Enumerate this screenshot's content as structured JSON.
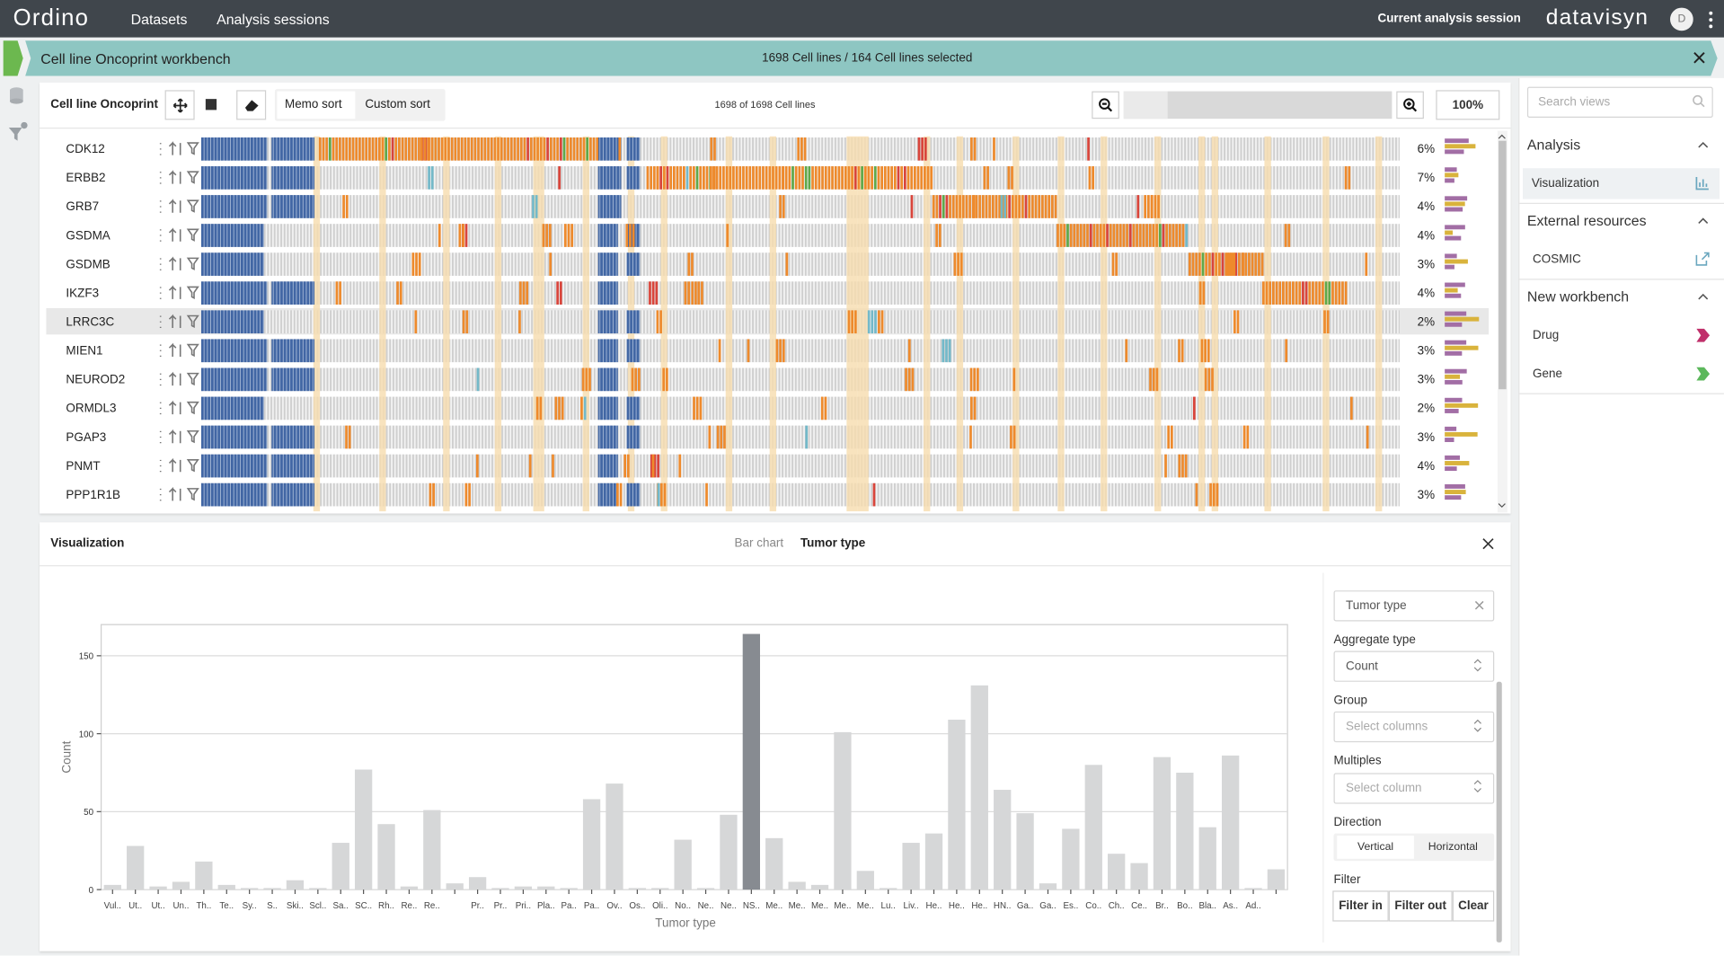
{
  "nav": {
    "brand": "Ordino",
    "links": [
      "Datasets",
      "Analysis sessions"
    ],
    "session": "Current analysis session",
    "company": "datavisyn",
    "avatar": "D"
  },
  "workbench": {
    "title": "Cell line Oncoprint workbench",
    "summary": "1698 Cell lines / 164 Cell lines selected"
  },
  "oncoprint": {
    "title": "Cell line Oncoprint",
    "sort_buttons": [
      "Memo sort",
      "Custom sort"
    ],
    "count": "1698 of 1698 Cell lines",
    "zoom": "100%",
    "genes": [
      "CDK12",
      "ERBB2",
      "GRB7",
      "GSDMA",
      "GSDMB",
      "IKZF3",
      "LRRC3C",
      "MIEN1",
      "NEUROD2",
      "ORMDL3",
      "PGAP3",
      "PNMT",
      "PPP1R1B"
    ],
    "frequencies": [
      "6%",
      "7%",
      "4%",
      "4%",
      "3%",
      "4%",
      "2%",
      "3%",
      "3%",
      "2%",
      "3%",
      "4%",
      "3%"
    ]
  },
  "sidebar": {
    "search": "Search views",
    "sections": [
      {
        "title": "Analysis",
        "items": [
          "Visualization"
        ]
      },
      {
        "title": "External resources",
        "items": [
          "COSMIC"
        ]
      },
      {
        "title": "New workbench",
        "items": [
          "Drug",
          "Gene"
        ]
      }
    ]
  },
  "visualization": {
    "title": "Visualization",
    "tabs": [
      "Bar chart",
      "Tumor type"
    ],
    "column": "Tumor type",
    "aggregate_label": "Aggregate type",
    "aggregate": "Count",
    "group_label": "Group",
    "group": "Select columns",
    "multiples_label": "Multiples",
    "multiples": "Select column",
    "direction_label": "Direction",
    "directions": [
      "Vertical",
      "Horizontal"
    ],
    "filter_label": "Filter",
    "filters": [
      "Filter in",
      "Filter out",
      "Clear"
    ]
  },
  "chart_data": {
    "type": "bar",
    "xlabel": "Tumor type",
    "ylabel": "Count",
    "categories": [
      "Vul..",
      "Ut..",
      "Ut..",
      "Un..",
      "Th..",
      "Te..",
      "Sy..",
      "S..",
      "Ski..",
      "Scl..",
      "Sa..",
      "SC..",
      "Rh..",
      "Re..",
      "Re..",
      null,
      "Pr..",
      "Pr..",
      "Pri..",
      "Pla..",
      "Pa..",
      "Pa..",
      "Ov..",
      "Os..",
      "Oli..",
      "No..",
      "Ne..",
      "Ne..",
      "NS..",
      "Me..",
      "Me..",
      "Me..",
      "Me..",
      "Me..",
      "Lu..",
      "Liv..",
      "He..",
      "He..",
      "He..",
      "HN..",
      "Ga..",
      "Ga..",
      "Es..",
      "Co..",
      "Ch..",
      "Ce..",
      "Br..",
      "Bo..",
      "Bla..",
      "As..",
      "Ad..",
      null
    ],
    "values": [
      3,
      28,
      2,
      5,
      18,
      3,
      1,
      1,
      6,
      1,
      30,
      77,
      42,
      2,
      51,
      4,
      8,
      1,
      2,
      2,
      1,
      58,
      68,
      1,
      1,
      32,
      1,
      48,
      164,
      33,
      5,
      3,
      101,
      12,
      1,
      30,
      36,
      109,
      131,
      64,
      49,
      4,
      39,
      80,
      23,
      17,
      85,
      75,
      40,
      86,
      1,
      13
    ],
    "colors": [
      "#d6d7d8",
      "#d6d7d8",
      "#d6d7d8",
      "#d6d7d8",
      "#d6d7d8",
      "#d6d7d8",
      "#d6d7d8",
      "#d6d7d8",
      "#d6d7d8",
      "#d6d7d8",
      "#d6d7d8",
      "#d6d7d8",
      "#d6d7d8",
      "#d6d7d8",
      "#d6d7d8",
      "#d6d7d8",
      "#d6d7d8",
      "#d6d7d8",
      "#d6d7d8",
      "#d6d7d8",
      "#d6d7d8",
      "#d6d7d8",
      "#d6d7d8",
      "#d6d7d8",
      "#d6d7d8",
      "#d6d7d8",
      "#d6d7d8",
      "#d6d7d8",
      "#878b91",
      "#d6d7d8",
      "#d6d7d8",
      "#d6d7d8",
      "#d6d7d8",
      "#d6d7d8",
      "#d6d7d8",
      "#d6d7d8",
      "#d6d7d8",
      "#d6d7d8",
      "#d6d7d8",
      "#d6d7d8",
      "#d6d7d8",
      "#d6d7d8",
      "#d6d7d8",
      "#d6d7d8",
      "#d6d7d8",
      "#d6d7d8",
      "#d6d7d8",
      "#d6d7d8",
      "#d6d7d8",
      "#d6d7d8",
      "#d6d7d8",
      "#d6d7d8"
    ],
    "ylim": [
      0,
      170
    ],
    "yticks": [
      0,
      50,
      100,
      150
    ],
    "grid": true
  }
}
